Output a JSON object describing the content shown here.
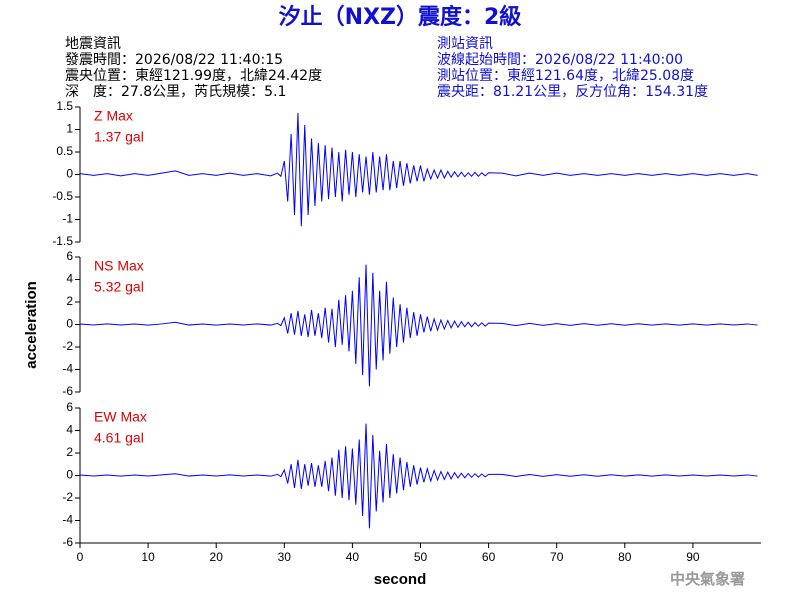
{
  "header": {
    "title": "汐止（NXZ）震度：2級",
    "left_info": [
      "地震資訊",
      "發震時間：2026/08/22 11:40:15",
      "震央位置：東經121.99度，北緯24.42度",
      "深　度：27.8公里，芮氏規模：5.1"
    ],
    "right_info": [
      "測站資訊",
      "波線起始時間：2026/08/22 11:40:00",
      "測站位置：東經121.64度，北緯25.08度",
      "震央距：81.21公里，反方位角：154.31度"
    ]
  },
  "footer": "中央氣象署",
  "chart_data": {
    "type": "line",
    "xlabel": "second",
    "ylabel": "acceleration",
    "xlim": [
      0,
      100
    ],
    "xticks": [
      0,
      10,
      20,
      30,
      40,
      50,
      60,
      70,
      80,
      90
    ],
    "x": [
      0,
      2,
      4,
      6,
      8,
      10,
      12,
      14,
      16,
      18,
      20,
      22,
      24,
      26,
      28,
      29,
      29.5,
      30,
      30.5,
      31,
      31.5,
      32,
      32.5,
      33,
      33.5,
      34,
      34.5,
      35,
      35.5,
      36,
      36.5,
      37,
      37.5,
      38,
      38.5,
      39,
      39.5,
      40,
      40.5,
      41,
      41.5,
      42,
      42.5,
      43,
      43.5,
      44,
      44.5,
      45,
      45.5,
      46,
      46.5,
      47,
      47.5,
      48,
      48.5,
      49,
      49.5,
      50,
      50.5,
      51,
      51.5,
      52,
      52.5,
      53,
      53.5,
      54,
      54.5,
      55,
      55.5,
      56,
      56.5,
      57,
      57.5,
      58,
      58.5,
      59,
      59.5,
      60,
      62,
      64,
      66,
      68,
      70,
      72,
      74,
      76,
      78,
      80,
      82,
      84,
      86,
      88,
      90,
      92,
      94,
      96,
      98,
      99.5
    ],
    "series": [
      {
        "name": "Z Max",
        "max_label": "1.37 gal",
        "color": "#0000ff",
        "ylim": [
          -1.5,
          1.5
        ],
        "yticks": [
          -1.5,
          -1,
          -0.5,
          0,
          0.5,
          1,
          1.5
        ],
        "values": [
          0.02,
          -0.02,
          0.02,
          -0.03,
          0.02,
          -0.02,
          0.03,
          0.08,
          -0.02,
          0.02,
          -0.02,
          0.03,
          -0.02,
          0.02,
          -0.03,
          0.03,
          -0.04,
          0.3,
          -0.6,
          0.9,
          -0.9,
          1.37,
          -1.15,
          1.1,
          -0.9,
          0.8,
          -0.7,
          0.7,
          -0.6,
          0.65,
          -0.55,
          0.6,
          -0.5,
          0.5,
          -0.6,
          0.55,
          -0.45,
          0.5,
          -0.5,
          0.45,
          -0.4,
          0.4,
          -0.45,
          0.5,
          -0.4,
          0.4,
          -0.35,
          0.45,
          -0.35,
          0.3,
          -0.3,
          0.3,
          -0.25,
          0.25,
          -0.2,
          0.2,
          -0.15,
          0.2,
          -0.15,
          0.12,
          -0.1,
          0.1,
          -0.08,
          0.1,
          -0.08,
          0.07,
          -0.06,
          0.06,
          -0.05,
          0.05,
          -0.05,
          0.04,
          -0.04,
          0.05,
          -0.04,
          0.04,
          -0.03,
          0.04,
          0.03,
          -0.03,
          0.03,
          -0.02,
          0.03,
          -0.02,
          0.02,
          -0.02,
          0.02,
          -0.02,
          0.02,
          -0.02,
          0.02,
          -0.02,
          0.02,
          -0.02,
          0.02,
          -0.02,
          0.02,
          -0.02
        ]
      },
      {
        "name": "NS Max",
        "max_label": "5.32 gal",
        "color": "#0000ff",
        "ylim": [
          -6,
          6
        ],
        "yticks": [
          -6,
          -4,
          -2,
          0,
          2,
          4,
          6
        ],
        "values": [
          0.05,
          -0.05,
          0.06,
          -0.05,
          0.05,
          -0.06,
          0.05,
          0.2,
          -0.05,
          0.05,
          -0.06,
          0.05,
          -0.05,
          0.06,
          -0.05,
          0.1,
          -0.1,
          0.6,
          -0.8,
          1.0,
          -0.9,
          1.2,
          -1.0,
          0.9,
          -1.1,
          1.3,
          -1.0,
          1.0,
          -1.2,
          1.5,
          -1.6,
          1.4,
          -2.0,
          2.2,
          -1.8,
          2.6,
          -2.4,
          3.0,
          -3.5,
          4.2,
          -4.5,
          5.32,
          -5.5,
          4.6,
          -4.0,
          3.0,
          -3.2,
          3.8,
          -2.6,
          2.4,
          -2.0,
          1.8,
          -1.6,
          1.5,
          -1.2,
          1.1,
          -1.0,
          0.9,
          -0.7,
          0.7,
          -0.6,
          0.5,
          -0.5,
          0.4,
          -0.4,
          0.35,
          -0.3,
          0.3,
          -0.25,
          0.25,
          -0.2,
          0.2,
          -0.2,
          0.18,
          -0.15,
          0.15,
          -0.15,
          0.12,
          0.1,
          -0.1,
          0.1,
          -0.08,
          0.08,
          -0.08,
          0.08,
          -0.07,
          0.07,
          -0.07,
          0.07,
          -0.06,
          0.06,
          -0.06,
          0.06,
          -0.06,
          0.06,
          -0.05,
          0.05,
          -0.05
        ]
      },
      {
        "name": "EW Max",
        "max_label": "4.61 gal",
        "color": "#0000ff",
        "ylim": [
          -6,
          6
        ],
        "yticks": [
          -6,
          -4,
          -2,
          0,
          2,
          4,
          6
        ],
        "values": [
          0.05,
          -0.05,
          0.05,
          -0.06,
          0.05,
          -0.05,
          0.06,
          0.15,
          -0.05,
          0.05,
          -0.05,
          0.06,
          -0.05,
          0.05,
          -0.06,
          0.1,
          -0.1,
          0.5,
          -0.7,
          1.0,
          -1.1,
          1.4,
          -1.2,
          1.0,
          -0.9,
          1.1,
          -1.0,
          0.9,
          -1.0,
          1.3,
          -1.4,
          1.6,
          -1.8,
          2.3,
          -2.0,
          2.6,
          -2.2,
          2.4,
          -2.6,
          3.2,
          -3.6,
          4.61,
          -4.7,
          3.6,
          -3.2,
          2.2,
          -2.4,
          2.8,
          -2.0,
          1.9,
          -1.6,
          1.6,
          -1.3,
          1.2,
          -1.0,
          0.9,
          -0.8,
          0.7,
          -0.6,
          0.6,
          -0.5,
          0.45,
          -0.4,
          0.35,
          -0.35,
          0.3,
          -0.3,
          0.25,
          -0.22,
          0.2,
          -0.2,
          0.18,
          -0.16,
          0.15,
          -0.14,
          0.13,
          -0.12,
          0.1,
          0.1,
          -0.09,
          0.09,
          -0.08,
          0.08,
          -0.07,
          0.07,
          -0.07,
          0.07,
          -0.06,
          0.06,
          -0.06,
          0.06,
          -0.05,
          0.05,
          -0.05,
          0.05,
          -0.05,
          0.05,
          -0.05
        ]
      }
    ]
  }
}
